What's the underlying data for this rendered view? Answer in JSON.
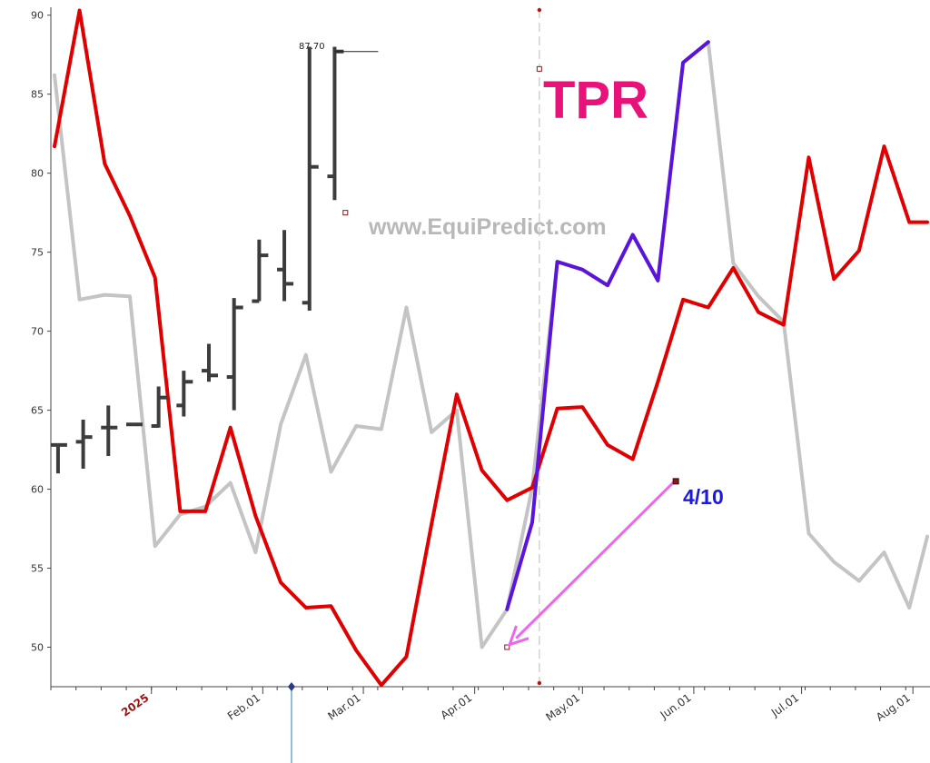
{
  "chart_data": {
    "type": "line",
    "title": "TPR",
    "watermark": "www.EquiPredict.com",
    "ylim": [
      47.5,
      90.5
    ],
    "yticks": [
      50,
      55,
      60,
      65,
      70,
      75,
      80,
      85,
      90
    ],
    "xlim": [
      "2024-12-04",
      "2025-08-05"
    ],
    "xticks": [
      {
        "date": "2025-01-01",
        "label": "2025",
        "year": true
      },
      {
        "date": "2025-02-01",
        "label": "Feb.01"
      },
      {
        "date": "2025-03-01",
        "label": "Mar.01"
      },
      {
        "date": "2025-04-01",
        "label": "Apr.01"
      },
      {
        "date": "2025-05-01",
        "label": "May.01"
      },
      {
        "date": "2025-06-01",
        "label": "Jun.01"
      },
      {
        "date": "2025-07-01",
        "label": "Jul.01"
      },
      {
        "date": "2025-08-01",
        "label": "Aug.01"
      }
    ],
    "today_date": "2025-04-19",
    "current_marker_date": "2025-02-09",
    "last_price": {
      "value": 87.7,
      "label": "87.70"
    },
    "colors": {
      "red": "#e00000",
      "gray": "#c4c4c4",
      "blue": "#5a14dc",
      "ohlc": "#3c3c3c",
      "ticker": "#e8127a",
      "watermark": "#b8b8b8",
      "annotation": "#1a1ae0",
      "arrow": "#ee66ee",
      "grid": "#d8d8d8"
    },
    "series": [
      {
        "color": "red",
        "x": [
          "2024-12-05",
          "2024-12-12",
          "2024-12-19",
          "2024-12-26",
          "2025-01-02",
          "2025-01-09",
          "2025-01-16",
          "2025-01-23",
          "2025-01-30",
          "2025-02-06",
          "2025-02-13",
          "2025-02-20",
          "2025-02-27",
          "2025-03-06",
          "2025-03-13",
          "2025-03-20",
          "2025-03-27",
          "2025-04-03",
          "2025-04-10",
          "2025-04-17",
          "2025-04-24",
          "2025-05-01",
          "2025-05-08",
          "2025-05-15",
          "2025-05-22",
          "2025-05-29",
          "2025-06-05",
          "2025-06-12",
          "2025-06-19",
          "2025-06-26",
          "2025-07-03",
          "2025-07-10",
          "2025-07-17",
          "2025-07-24",
          "2025-07-31",
          "2025-08-05"
        ],
        "y": [
          81.7,
          90.3,
          80.6,
          77.3,
          73.4,
          58.6,
          58.6,
          63.9,
          58.3,
          54.1,
          52.5,
          52.6,
          49.8,
          47.6,
          49.4,
          57.8,
          66.0,
          61.2,
          59.3,
          60.1,
          65.1,
          65.2,
          62.8,
          61.9,
          66.8,
          72.0,
          71.5,
          74.0,
          71.2,
          70.4,
          81.0,
          73.3,
          75.1,
          81.7,
          76.9,
          76.9
        ]
      },
      {
        "color": "gray",
        "x": [
          "2024-12-05",
          "2024-12-12",
          "2024-12-19",
          "2024-12-26",
          "2025-01-02",
          "2025-01-09",
          "2025-01-16",
          "2025-01-23",
          "2025-01-30",
          "2025-02-06",
          "2025-02-13",
          "2025-02-20",
          "2025-02-27",
          "2025-03-06",
          "2025-03-13",
          "2025-03-20",
          "2025-03-27",
          "2025-04-03",
          "2025-04-10",
          "2025-04-17",
          "2025-04-24",
          "2025-05-01",
          "2025-05-08",
          "2025-05-15",
          "2025-05-22",
          "2025-05-29",
          "2025-06-05",
          "2025-06-12",
          "2025-06-19",
          "2025-06-26",
          "2025-07-03",
          "2025-07-10",
          "2025-07-17",
          "2025-07-24",
          "2025-07-31",
          "2025-08-05"
        ],
        "y": [
          86.2,
          72.0,
          72.3,
          72.2,
          56.4,
          58.4,
          58.9,
          60.4,
          56.0,
          64.1,
          68.5,
          61.1,
          64.0,
          63.8,
          71.5,
          63.6,
          65.0,
          50.0,
          52.4,
          60.1,
          74.4,
          73.9,
          72.9,
          76.1,
          73.2,
          87.0,
          88.3,
          74.3,
          72.2,
          70.6,
          57.2,
          55.4,
          54.2,
          56.0,
          52.5,
          57.0
        ]
      },
      {
        "color": "blue",
        "x": [
          "2025-04-10",
          "2025-04-17",
          "2025-04-24",
          "2025-05-01",
          "2025-05-08",
          "2025-05-15",
          "2025-05-22",
          "2025-05-29",
          "2025-06-05"
        ],
        "y": [
          52.4,
          57.9,
          74.4,
          73.9,
          72.9,
          76.1,
          73.2,
          87.0,
          88.3
        ]
      }
    ],
    "ohlc": [
      {
        "x": "2024-12-06",
        "open": 62.8,
        "high": 62.8,
        "low": 61.0,
        "close": 62.8
      },
      {
        "x": "2024-12-13",
        "open": 63.0,
        "high": 64.4,
        "low": 61.3,
        "close": 63.3
      },
      {
        "x": "2024-12-20",
        "open": 63.9,
        "high": 65.3,
        "low": 62.1,
        "close": 63.9
      },
      {
        "x": "2024-12-27",
        "open": 64.1,
        "high": 64.1,
        "low": 64.1,
        "close": 64.1
      },
      {
        "x": "2025-01-03",
        "open": 64.0,
        "high": 66.5,
        "low": 63.9,
        "close": 65.8
      },
      {
        "x": "2025-01-10",
        "open": 65.3,
        "high": 67.5,
        "low": 64.6,
        "close": 66.8
      },
      {
        "x": "2025-01-17",
        "open": 67.5,
        "high": 69.2,
        "low": 66.8,
        "close": 67.2
      },
      {
        "x": "2025-01-24",
        "open": 67.1,
        "high": 72.1,
        "low": 65.0,
        "close": 71.5
      },
      {
        "x": "2025-01-31",
        "open": 71.9,
        "high": 75.8,
        "low": 71.9,
        "close": 74.8
      },
      {
        "x": "2025-02-07",
        "open": 73.9,
        "high": 76.4,
        "low": 71.9,
        "close": 73.0
      },
      {
        "x": "2025-02-14",
        "open": 71.8,
        "high": 88.0,
        "low": 71.3,
        "close": 80.4
      },
      {
        "x": "2025-02-21",
        "open": 79.8,
        "high": 88.0,
        "low": 78.3,
        "close": 87.7
      }
    ],
    "points": [
      {
        "x": "2025-04-10",
        "y": 50.0
      },
      {
        "x": "2025-04-19",
        "y": 86.6
      },
      {
        "x": "2025-02-24",
        "y": 77.5
      },
      {
        "x": "2025-05-27",
        "y": 60.5
      }
    ],
    "annotation": {
      "label": "4/10",
      "from": {
        "x": "2025-05-27",
        "y": 60.5
      },
      "to": {
        "x": "2025-04-10",
        "y": 50.0
      }
    }
  }
}
